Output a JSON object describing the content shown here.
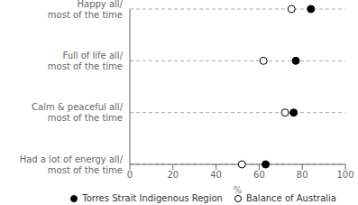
{
  "chart_data": {
    "type": "dot",
    "categories": [
      "Had a lot of energy all/\nmost of the time",
      "Calm & peaceful all/\nmost of the time",
      "Full of life all/\nmost of the time",
      "Happy all/\nmost of the time"
    ],
    "series": [
      {
        "name": "Torres Strait Indigenous Region",
        "color": "#000000",
        "marker": "circle",
        "values": [
          63,
          76,
          77,
          84
        ]
      },
      {
        "name": "Balance of Australia",
        "color": "#ffffff",
        "marker": "circle",
        "values": [
          52,
          72,
          62,
          75
        ]
      }
    ],
    "xlabel": "%",
    "xlim": [
      0,
      100
    ],
    "xticks": [
      0,
      20,
      40,
      60,
      80,
      100
    ],
    "orientation": "horizontal",
    "grid": true,
    "legend": "lower right"
  }
}
